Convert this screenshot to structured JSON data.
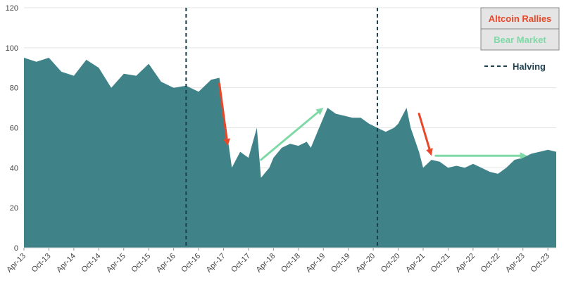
{
  "chart_data": {
    "type": "area",
    "title": "",
    "xlabel": "",
    "ylabel": "",
    "ylim": [
      0,
      120
    ],
    "yticks": [
      "0",
      "20",
      "40",
      "60",
      "80",
      "100",
      "120"
    ],
    "xticks": [
      "Apr-13",
      "Oct-13",
      "Apr-14",
      "Oct-14",
      "Apr-15",
      "Oct-15",
      "Apr-16",
      "Oct-16",
      "Apr-17",
      "Oct-17",
      "Apr-18",
      "Oct-18",
      "Apr-19",
      "Oct-19",
      "Apr-20",
      "Oct-20",
      "Apr-21",
      "Oct-21",
      "Apr-22",
      "Oct-22",
      "Apr-23",
      "Oct-23"
    ],
    "grid": true,
    "series": [
      {
        "color": "#3f8389",
        "x": [
          "Apr-13",
          "Jul-13",
          "Oct-13",
          "Jan-14",
          "Apr-14",
          "Jul-14",
          "Oct-14",
          "Jan-15",
          "Apr-15",
          "Jul-15",
          "Oct-15",
          "Jan-16",
          "Apr-16",
          "Jul-16",
          "Oct-16",
          "Jan-17",
          "Mar-17",
          "May-17",
          "Jun-17",
          "Aug-17",
          "Oct-17",
          "Dec-17",
          "Jan-18",
          "Mar-18",
          "Apr-18",
          "Jun-18",
          "Aug-18",
          "Oct-18",
          "Dec-18",
          "Jan-19",
          "Mar-19",
          "May-19",
          "Jul-19",
          "Sep-19",
          "Nov-19",
          "Jan-20",
          "Mar-20",
          "May-20",
          "Jul-20",
          "Sep-20",
          "Oct-20",
          "Dec-20",
          "Jan-21",
          "Mar-21",
          "Apr-21",
          "Jun-21",
          "Aug-21",
          "Oct-21",
          "Dec-21",
          "Feb-22",
          "Apr-22",
          "Jun-22",
          "Aug-22",
          "Oct-22",
          "Dec-22",
          "Feb-23",
          "Apr-23",
          "Jun-23",
          "Aug-23",
          "Oct-23",
          "Dec-23"
        ],
        "values": [
          95,
          93,
          95,
          88,
          86,
          94,
          90,
          80,
          87,
          86,
          92,
          83,
          80,
          81,
          78,
          84,
          85,
          55,
          40,
          48,
          45,
          60,
          35,
          40,
          45,
          50,
          52,
          51,
          53,
          50,
          60,
          70,
          67,
          66,
          65,
          65,
          62,
          60,
          58,
          60,
          62,
          70,
          60,
          48,
          40,
          44,
          43,
          40,
          41,
          40,
          42,
          40,
          38,
          37,
          40,
          44,
          45,
          47,
          48,
          49,
          48
        ]
      }
    ],
    "halving_markers": [
      "Jul-16",
      "May-20"
    ],
    "annotations": {
      "altcoin_rallies_color": "#e8472a",
      "bear_market_color": "#7fd9a6",
      "arrows": [
        {
          "type": "altcoin",
          "from": [
            "Mar-17",
            82
          ],
          "to": [
            "May-17",
            51
          ]
        },
        {
          "type": "bear",
          "from": [
            "Jan-18",
            44
          ],
          "to": [
            "Apr-19",
            70
          ]
        },
        {
          "type": "altcoin",
          "from": [
            "Mar-21",
            67
          ],
          "to": [
            "Jun-21",
            46
          ]
        },
        {
          "type": "bear",
          "from": [
            "Jul-21",
            46
          ],
          "to": [
            "May-23",
            46
          ]
        }
      ]
    },
    "legend": {
      "position": "top-right",
      "altcoin_label": "Altcoin Rallies",
      "bear_label": "Bear Market",
      "halving_label": "Halving"
    }
  }
}
